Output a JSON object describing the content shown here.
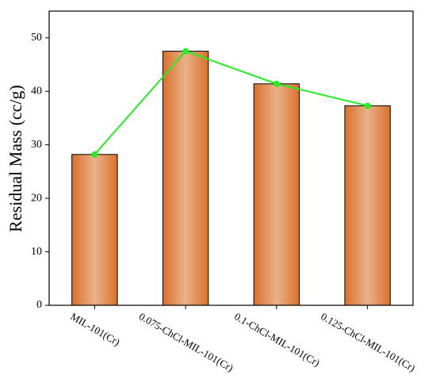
{
  "chart_data": {
    "type": "bar",
    "y_label": "Residual Mass (cc/g)",
    "categories": [
      "MIL-101(Cr)",
      "0.075-ChCl-MIL-101(Cr)",
      "0.1-ChCl-MIL-101(Cr)",
      "0.125-ChCl-MIL-101(Cr)"
    ],
    "values": [
      28.2,
      47.5,
      41.4,
      37.3
    ],
    "color": "#d9712a",
    "overlay_line": true,
    "line_color": "#22ee22",
    "ylim": [
      0,
      55
    ],
    "yticks": [
      0,
      10,
      20,
      30,
      40,
      50
    ],
    "grid": false
  }
}
